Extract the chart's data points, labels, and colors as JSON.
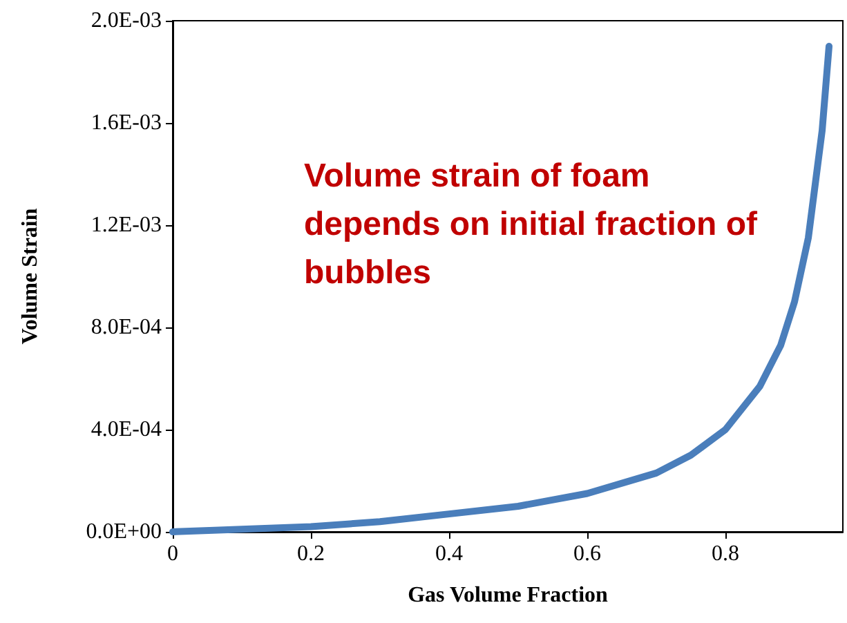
{
  "chart_data": {
    "type": "line",
    "xlabel": "Gas Volume Fraction",
    "ylabel": "Volume Strain",
    "annotations": [
      "Volume strain of foam depends on initial fraction of bubbles"
    ],
    "x": [
      0,
      0.1,
      0.2,
      0.3,
      0.4,
      0.5,
      0.6,
      0.7,
      0.75,
      0.8,
      0.85,
      0.88,
      0.9,
      0.92,
      0.94,
      0.95
    ],
    "series": [
      {
        "color": "#4a7ebb",
        "values": [
          0,
          1e-05,
          2e-05,
          4e-05,
          7e-05,
          0.0001,
          0.00015,
          0.00023,
          0.0003,
          0.0004,
          0.00057,
          0.00073,
          0.0009,
          0.00115,
          0.00157,
          0.0019
        ]
      }
    ],
    "xlim": [
      0,
      0.97
    ],
    "xticks": [
      0,
      0.2,
      0.4,
      0.6,
      0.8
    ],
    "ylim": [
      0,
      0.002
    ],
    "yticks": [
      {
        "value": 0,
        "label": "0.0E+00"
      },
      {
        "value": 0.0004,
        "label": "4.0E-04"
      },
      {
        "value": 0.0008,
        "label": "8.0E-04"
      },
      {
        "value": 0.0012,
        "label": "1.2E-03"
      },
      {
        "value": 0.0016,
        "label": "1.6E-03"
      },
      {
        "value": 0.002,
        "label": "2.0E-03"
      }
    ],
    "grid": false,
    "marker": "none",
    "line_style": "solid"
  }
}
